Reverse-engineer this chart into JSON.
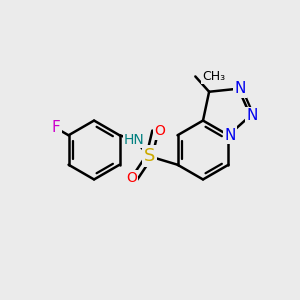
{
  "background_color": "#ebebeb",
  "bond_color": "#000000",
  "bond_width": 1.8,
  "figsize": [
    3.0,
    3.0
  ],
  "dpi": 100,
  "colors": {
    "F": "#cc00cc",
    "N": "#0000ee",
    "O": "#ff0000",
    "S": "#ccaa00",
    "NH": "#008080",
    "C": "#000000"
  }
}
